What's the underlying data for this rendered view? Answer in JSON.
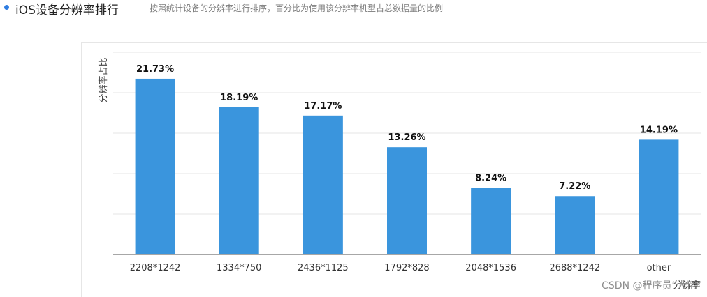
{
  "header": {
    "title": "iOS设备分辨率排行",
    "subtitle": "按照统计设备的分辨率进行排序，百分比为使用该分辨率机型占总数据量的比例"
  },
  "watermark": "CSDN @程序员“大佬”",
  "colors": {
    "bar": "#3a95dd",
    "accent": "#2f7de1",
    "grid": "#e6e6e6",
    "axis": "#8a8a8a"
  },
  "chart_data": {
    "type": "bar",
    "title": "",
    "xlabel": "分辨率",
    "ylabel": "分辨率占比",
    "categories": [
      "2208*1242",
      "1334*750",
      "2436*1125",
      "1792*828",
      "2048*1536",
      "2688*1242",
      "other"
    ],
    "values": [
      21.73,
      18.19,
      17.17,
      13.26,
      8.24,
      7.22,
      14.19
    ],
    "value_labels": [
      "21.73%",
      "18.19%",
      "17.17%",
      "13.26%",
      "8.24%",
      "7.22%",
      "14.19%"
    ],
    "ylim": [
      0,
      25
    ],
    "grid": true,
    "legend": false
  }
}
